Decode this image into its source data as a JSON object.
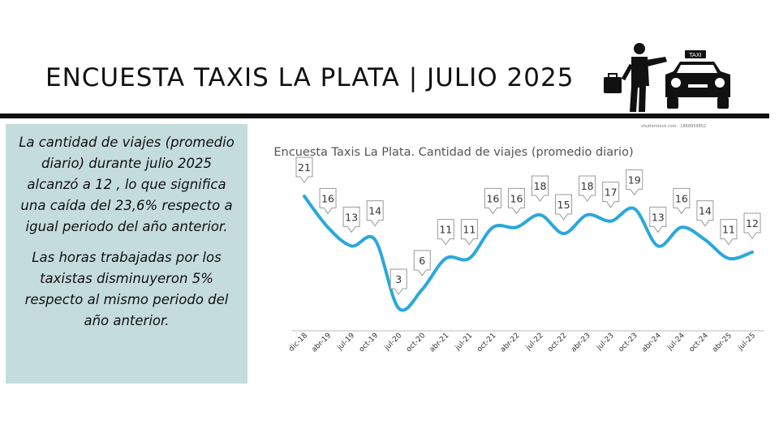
{
  "header": {
    "title": "ENCUESTA TAXIS LA PLATA | JULIO 2025",
    "logo_sign": "TAXI",
    "watermark": "shutterstock.com · 1868959852"
  },
  "summary": {
    "paragraph_1": "La cantidad de viajes (promedio diario) durante julio 2025 alcanzó a 12 , lo que significa una caída del 23,6% respecto a igual periodo del año anterior.",
    "paragraph_2": "Las horas trabajadas por los taxistas disminuyeron 5% respecto al mismo periodo del año anterior."
  },
  "colors": {
    "line": "#2aa8dc",
    "panel": "#c5dcdc",
    "rule": "#111111"
  },
  "chart_data": {
    "type": "line",
    "title": "Encuesta Taxis La Plata. Cantidad de viajes (promedio diario)",
    "xlabel": "",
    "ylabel": "",
    "grid": false,
    "categories": [
      "dic-18",
      "abr-19",
      "jul-19",
      "oct-19",
      "jul-20",
      "oct-20",
      "abr-21",
      "jul-21",
      "oct-21",
      "abr-22",
      "jul-22",
      "oct-22",
      "abr-23",
      "jul-23",
      "oct-23",
      "abr-24",
      "jul-24",
      "oct-24",
      "abr-25",
      "jul-25"
    ],
    "values": [
      21,
      16,
      13,
      14,
      3,
      6,
      11,
      11,
      16,
      16,
      18,
      15,
      18,
      17,
      19,
      13,
      16,
      14,
      11,
      12
    ],
    "series_values_shown": [
      21,
      16,
      13,
      14,
      3,
      6,
      11,
      11,
      16,
      16,
      18,
      15,
      18,
      17,
      19,
      13,
      16,
      14,
      11,
      12
    ]
  }
}
